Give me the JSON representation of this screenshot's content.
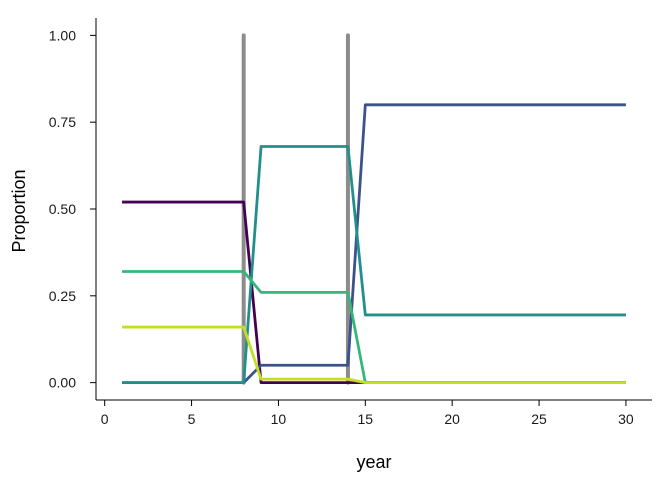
{
  "chart_data": {
    "type": "line",
    "title": "",
    "xlabel": "year",
    "ylabel": "Proportion",
    "xlim": [
      -0.5,
      31.5
    ],
    "ylim": [
      -0.05,
      1.05
    ],
    "x_ticks": [
      0,
      5,
      10,
      15,
      20,
      25,
      30
    ],
    "y_ticks": [
      0.0,
      0.25,
      0.5,
      0.75,
      1.0
    ],
    "x_tick_labels": [
      "0",
      "5",
      "10",
      "15",
      "20",
      "25",
      "30"
    ],
    "y_tick_labels": [
      "0.00",
      "0.25",
      "0.50",
      "0.75",
      "1.00"
    ],
    "vlines": [
      {
        "x": 8,
        "y0": 0,
        "y1": 1.0,
        "color": "#8c8c8c"
      },
      {
        "x": 14,
        "y0": 0,
        "y1": 1.0,
        "color": "#8c8c8c"
      }
    ],
    "series": [
      {
        "name": "purple",
        "color": "#440154",
        "x": [
          1,
          8,
          9,
          14,
          15,
          30
        ],
        "y": [
          0.52,
          0.52,
          0.0,
          0.0,
          0.0,
          0.0
        ]
      },
      {
        "name": "dark-blue",
        "color": "#3b528b",
        "x": [
          1,
          8,
          9,
          14,
          15,
          30
        ],
        "y": [
          0.0,
          0.0,
          0.05,
          0.05,
          0.8,
          0.8
        ]
      },
      {
        "name": "teal",
        "color": "#21908c",
        "x": [
          1,
          8,
          9,
          14,
          15,
          30
        ],
        "y": [
          0.0,
          0.0,
          0.68,
          0.68,
          0.195,
          0.195
        ]
      },
      {
        "name": "green",
        "color": "#35b779",
        "x": [
          1,
          8,
          9,
          14,
          15,
          30
        ],
        "y": [
          0.32,
          0.32,
          0.26,
          0.26,
          0.0,
          0.0
        ]
      },
      {
        "name": "yellow-green",
        "color": "#c2df23",
        "x": [
          1,
          8,
          9,
          14,
          15,
          30
        ],
        "y": [
          0.16,
          0.16,
          0.01,
          0.01,
          0.0,
          0.0
        ]
      }
    ]
  }
}
